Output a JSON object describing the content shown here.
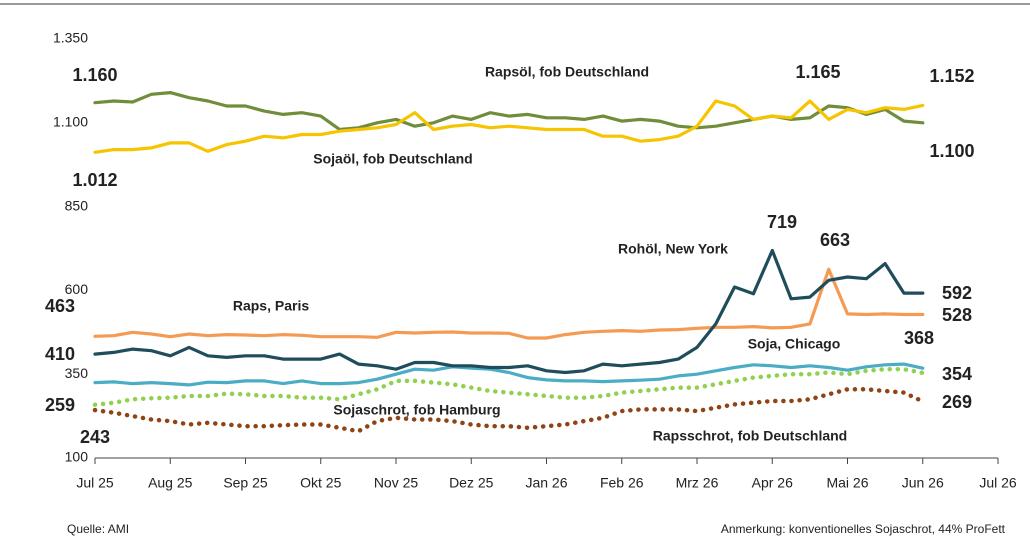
{
  "chart_data": {
    "type": "line",
    "source": "Quelle: AMI",
    "note": "Anmerkung: konventionelles Sojaschrot, 44% ProFett",
    "xlim": [
      0,
      12
    ],
    "xticks": [
      {
        "value": 0,
        "label": "Jul 25"
      },
      {
        "value": 1,
        "label": "Aug 25"
      },
      {
        "value": 2,
        "label": "Sep 25"
      },
      {
        "value": 3,
        "label": "Okt 25"
      },
      {
        "value": 4,
        "label": "Nov 25"
      },
      {
        "value": 5,
        "label": "Dez 25"
      },
      {
        "value": 6,
        "label": "Jan 26"
      },
      {
        "value": 7,
        "label": "Feb 26"
      },
      {
        "value": 8,
        "label": "Mrz 26"
      },
      {
        "value": 9,
        "label": "Apr 26"
      },
      {
        "value": 10,
        "label": "Mai 26"
      },
      {
        "value": 11,
        "label": "Jun 26"
      },
      {
        "value": 12,
        "label": "Jul 26"
      }
    ],
    "ylim": [
      100,
      1350
    ],
    "yticks": [
      100,
      350,
      600,
      850,
      {
        "value": 1100,
        "label": "1.100"
      },
      {
        "value": 1350,
        "label": "1.350"
      }
    ],
    "grid": false,
    "x": [
      0,
      0.25,
      0.5,
      0.75,
      1,
      1.25,
      1.5,
      1.75,
      2,
      2.25,
      2.5,
      2.75,
      3,
      3.25,
      3.5,
      3.75,
      4,
      4.25,
      4.5,
      4.75,
      5,
      5.25,
      5.5,
      5.75,
      6,
      6.25,
      6.5,
      6.75,
      7,
      7.25,
      7.5,
      7.75,
      8,
      8.25,
      8.5,
      8.75,
      9,
      9.25,
      9.5,
      9.75,
      10,
      10.25,
      10.5,
      10.75,
      11
    ],
    "series": [
      {
        "name": "Rapsöl, fob Deutschland",
        "color": "#f6c400",
        "style": "solid",
        "values": [
          1012,
          1020,
          1020,
          1025,
          1040,
          1040,
          1015,
          1035,
          1045,
          1060,
          1055,
          1065,
          1065,
          1075,
          1080,
          1085,
          1095,
          1130,
          1080,
          1090,
          1095,
          1085,
          1090,
          1085,
          1080,
          1080,
          1080,
          1060,
          1060,
          1045,
          1050,
          1060,
          1090,
          1165,
          1150,
          1110,
          1120,
          1115,
          1165,
          1110,
          1140,
          1130,
          1145,
          1140,
          1152
        ],
        "value_labels": [
          "1.012",
          null,
          null,
          null,
          null,
          null,
          null,
          null,
          null,
          null,
          null,
          null,
          null,
          null,
          null,
          null,
          null,
          null,
          null,
          null,
          null,
          null,
          null,
          null,
          null,
          null,
          null,
          null,
          null,
          null,
          null,
          null,
          null,
          null,
          null,
          null,
          null,
          null,
          "1.165",
          null,
          null,
          null,
          null,
          null,
          "1.152"
        ]
      },
      {
        "name": "Sojaöl, fob Deutschland",
        "color": "#6f8d3a",
        "style": "solid",
        "values": [
          1160,
          1165,
          1162,
          1185,
          1190,
          1175,
          1165,
          1150,
          1150,
          1135,
          1125,
          1130,
          1120,
          1080,
          1085,
          1100,
          1110,
          1090,
          1100,
          1120,
          1110,
          1130,
          1120,
          1125,
          1115,
          1115,
          1110,
          1120,
          1105,
          1110,
          1105,
          1090,
          1085,
          1090,
          1100,
          1110,
          1120,
          1110,
          1115,
          1150,
          1145,
          1125,
          1140,
          1105,
          1100
        ],
        "value_labels": [
          "1.160",
          null,
          null,
          null,
          null,
          null,
          null,
          null,
          null,
          null,
          null,
          null,
          null,
          null,
          null,
          null,
          null,
          null,
          null,
          null,
          null,
          null,
          null,
          null,
          null,
          null,
          null,
          null,
          null,
          null,
          null,
          null,
          null,
          null,
          null,
          null,
          null,
          null,
          null,
          null,
          null,
          null,
          null,
          null,
          "1.100"
        ]
      },
      {
        "name": "Rohöl, New York",
        "color": "#1f4d5c",
        "style": "solid",
        "values": [
          410,
          415,
          425,
          420,
          405,
          430,
          405,
          400,
          405,
          405,
          395,
          395,
          395,
          410,
          380,
          375,
          365,
          385,
          385,
          375,
          375,
          370,
          370,
          375,
          360,
          355,
          360,
          380,
          375,
          380,
          385,
          395,
          430,
          500,
          610,
          590,
          719,
          575,
          580,
          630,
          640,
          635,
          680,
          592,
          592
        ],
        "value_labels": [
          "410",
          null,
          null,
          null,
          null,
          null,
          null,
          null,
          null,
          null,
          null,
          null,
          null,
          null,
          null,
          null,
          null,
          null,
          null,
          null,
          null,
          null,
          null,
          null,
          null,
          null,
          null,
          null,
          null,
          null,
          null,
          null,
          null,
          null,
          null,
          null,
          "719",
          null,
          null,
          null,
          null,
          null,
          null,
          null,
          "592"
        ]
      },
      {
        "name": "Raps, Paris",
        "color": "#f59a52",
        "style": "solid",
        "values": [
          463,
          465,
          475,
          470,
          462,
          470,
          465,
          468,
          467,
          465,
          468,
          466,
          462,
          462,
          462,
          460,
          475,
          473,
          475,
          476,
          473,
          473,
          472,
          458,
          458,
          468,
          475,
          478,
          480,
          478,
          482,
          483,
          487,
          490,
          490,
          492,
          488,
          490,
          500,
          663,
          530,
          528,
          530,
          528,
          528
        ],
        "value_labels": [
          "463",
          null,
          null,
          null,
          null,
          null,
          null,
          null,
          null,
          null,
          null,
          null,
          null,
          null,
          null,
          null,
          null,
          null,
          null,
          null,
          null,
          null,
          null,
          null,
          null,
          null,
          null,
          null,
          null,
          null,
          null,
          null,
          null,
          null,
          null,
          null,
          null,
          null,
          null,
          "663",
          null,
          null,
          null,
          null,
          "528"
        ]
      },
      {
        "name": "Soja, Chicago",
        "color": "#4bacc6",
        "style": "solid",
        "values": [
          325,
          327,
          322,
          325,
          322,
          318,
          326,
          325,
          330,
          330,
          322,
          330,
          322,
          322,
          325,
          335,
          350,
          365,
          362,
          372,
          368,
          365,
          355,
          340,
          333,
          330,
          330,
          328,
          330,
          332,
          335,
          345,
          350,
          360,
          370,
          378,
          375,
          370,
          375,
          370,
          362,
          372,
          378,
          380,
          368
        ],
        "value_labels": [
          null,
          null,
          null,
          null,
          null,
          null,
          null,
          null,
          null,
          null,
          null,
          null,
          null,
          null,
          null,
          null,
          null,
          null,
          null,
          null,
          null,
          null,
          null,
          null,
          null,
          null,
          null,
          null,
          null,
          null,
          null,
          null,
          null,
          null,
          null,
          null,
          null,
          null,
          null,
          null,
          null,
          null,
          null,
          null,
          "368"
        ]
      },
      {
        "name": "Sojaschrot, fob Hamburg",
        "color": "#92d050",
        "style": "dotted",
        "values": [
          259,
          265,
          275,
          278,
          280,
          285,
          285,
          292,
          290,
          285,
          285,
          280,
          280,
          275,
          290,
          305,
          330,
          330,
          325,
          320,
          310,
          300,
          295,
          290,
          285,
          280,
          280,
          285,
          295,
          300,
          305,
          310,
          310,
          320,
          330,
          340,
          345,
          350,
          350,
          355,
          350,
          360,
          365,
          365,
          354
        ],
        "value_labels": [
          "259",
          null,
          null,
          null,
          null,
          null,
          null,
          null,
          null,
          null,
          null,
          null,
          null,
          null,
          null,
          null,
          null,
          null,
          null,
          null,
          null,
          null,
          null,
          null,
          null,
          null,
          null,
          null,
          null,
          null,
          null,
          null,
          null,
          null,
          null,
          null,
          null,
          null,
          null,
          null,
          null,
          null,
          null,
          null,
          "354"
        ]
      },
      {
        "name": "Rapsschrot, fob Deutschland",
        "color": "#8f4415",
        "style": "dotted",
        "values": [
          243,
          235,
          225,
          215,
          210,
          200,
          205,
          200,
          195,
          195,
          198,
          200,
          200,
          190,
          180,
          210,
          220,
          215,
          215,
          210,
          200,
          195,
          195,
          190,
          195,
          200,
          210,
          220,
          240,
          245,
          245,
          245,
          240,
          250,
          260,
          265,
          270,
          270,
          275,
          290,
          305,
          305,
          300,
          295,
          269
        ],
        "value_labels": [
          "243",
          null,
          null,
          null,
          null,
          null,
          null,
          null,
          null,
          null,
          null,
          null,
          null,
          null,
          null,
          null,
          null,
          null,
          null,
          null,
          null,
          null,
          null,
          null,
          null,
          null,
          null,
          null,
          null,
          null,
          null,
          null,
          null,
          null,
          null,
          null,
          null,
          null,
          null,
          null,
          null,
          null,
          null,
          null,
          "269"
        ]
      }
    ]
  }
}
